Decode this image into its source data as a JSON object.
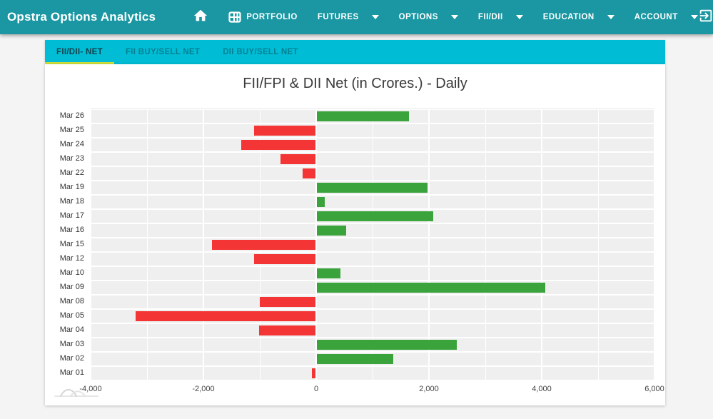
{
  "navbar": {
    "brand": "Opstra Options Analytics",
    "items": [
      {
        "label": "PORTFOLIO",
        "icon": "grid-icon",
        "caret": false
      },
      {
        "label": "FUTURES",
        "caret": true
      },
      {
        "label": "OPTIONS",
        "caret": true
      },
      {
        "label": "FII/DII",
        "caret": true
      },
      {
        "label": "EDUCATION",
        "caret": true
      },
      {
        "label": "ACCOUNT",
        "caret": true
      }
    ],
    "colors": {
      "background": "#1a97a2",
      "text": "#ffffff"
    }
  },
  "tabs": {
    "items": [
      {
        "label": "FII/DII- NET",
        "active": true
      },
      {
        "label": "FII BUY/SELL NET",
        "active": false
      },
      {
        "label": "DII BUY/SELL NET",
        "active": false
      }
    ],
    "colors": {
      "background": "#00bcd4",
      "active_underline": "#cddc39",
      "active_text": "#12424d"
    }
  },
  "chart_data": {
    "type": "bar",
    "orientation": "horizontal",
    "title": "FII/FPI & DII Net (in Crores.) - Daily",
    "categories": [
      "Mar 26",
      "Mar 25",
      "Mar 24",
      "Mar 23",
      "Mar 22",
      "Mar 19",
      "Mar 18",
      "Mar 17",
      "Mar 16",
      "Mar 15",
      "Mar 12",
      "Mar 10",
      "Mar 09",
      "Mar 08",
      "Mar 05",
      "Mar 04",
      "Mar 03",
      "Mar 02",
      "Mar 01"
    ],
    "values": [
      1650,
      -1100,
      -1330,
      -630,
      -240,
      1975,
      150,
      2070,
      535,
      -1850,
      -1100,
      430,
      4060,
      -1000,
      -3200,
      -1010,
      2490,
      1370,
      -80
    ],
    "xlim": [
      -4000,
      6000
    ],
    "x_ticks": [
      {
        "value": -4000,
        "label": "-4,000"
      },
      {
        "value": -2000,
        "label": "-2,000"
      },
      {
        "value": 0,
        "label": "0"
      },
      {
        "value": 2000,
        "label": "2,000"
      },
      {
        "value": 4000,
        "label": "4,000"
      },
      {
        "value": 6000,
        "label": "6,000"
      }
    ],
    "minor_grid_step": 1000,
    "grid": true,
    "legend": "none",
    "positive_color": "#3aa33c",
    "negative_color": "#f43535",
    "band_color": "#efefef"
  }
}
